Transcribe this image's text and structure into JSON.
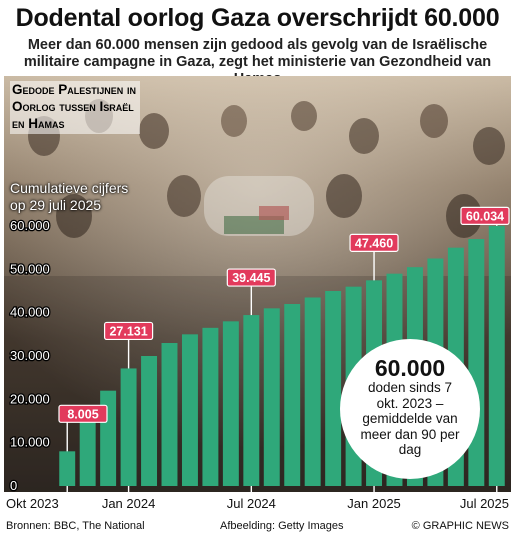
{
  "header": {
    "title": "Dodental oorlog Gaza overschrijdt 60.000",
    "subtitle_line1": "Meer dan 60.000 mensen zijn gedood als gevolg van de Israëlische",
    "subtitle_line2": "militaire campagne in Gaza, zegt het ministerie van Gezondheid van Hamas"
  },
  "section_label": {
    "line1": "Gedode Palestijnen in",
    "line2": "Oorlog tussen Israël",
    "line3": "en Hamas"
  },
  "chart_note": {
    "line1": "Cumulatieve cijfers",
    "line2": "op 29 juli 2025"
  },
  "highlight": {
    "value": "60.000",
    "text": "doden sinds 7 okt. 2023 – gemiddelde van meer dan 90 per dag"
  },
  "footer": {
    "sources": "Bronnen: BBC, The National",
    "credit": "Afbeelding: Getty Images",
    "brand": "© GRAPHIC NEWS"
  },
  "colors": {
    "bar": "#2fa87a",
    "label_box": "#e23a5c",
    "leader": "#ffffff"
  },
  "chart_data": {
    "type": "bar",
    "title": "",
    "xlabel": "",
    "ylabel": "",
    "ylim": [
      0,
      60000
    ],
    "yticks": [
      0,
      10000,
      20000,
      30000,
      40000,
      50000,
      60000
    ],
    "ytick_labels": [
      "0",
      "10.000",
      "20.000",
      "30.000",
      "40.000",
      "50.000",
      "60.000"
    ],
    "xtick_labels": [
      {
        "index": 0,
        "label": "Okt 2023"
      },
      {
        "index": 3,
        "label": "Jan 2024"
      },
      {
        "index": 9,
        "label": "Jul 2024"
      },
      {
        "index": 15,
        "label": "Jan 2025"
      },
      {
        "index": 21,
        "label": "Jul 2025"
      }
    ],
    "values": [
      8005,
      15000,
      22000,
      27131,
      30000,
      33000,
      35000,
      36500,
      38000,
      39445,
      41000,
      42000,
      43500,
      45000,
      46000,
      47460,
      49000,
      50500,
      52500,
      55000,
      57000,
      60034
    ],
    "annotations": [
      {
        "index": 0,
        "label": "8.005"
      },
      {
        "index": 3,
        "label": "27.131"
      },
      {
        "index": 9,
        "label": "39.445"
      },
      {
        "index": 15,
        "label": "47.460"
      },
      {
        "index": 21,
        "label": "60.034"
      }
    ],
    "grid": false,
    "legend": "none"
  }
}
